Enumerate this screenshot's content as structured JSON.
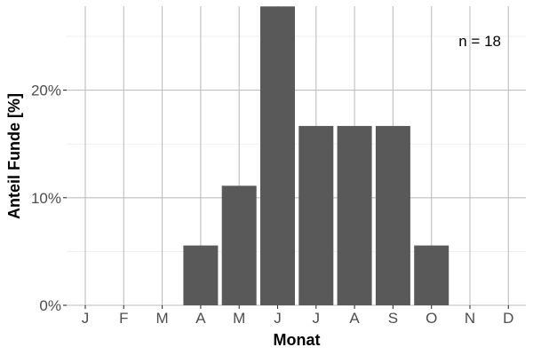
{
  "chart_data": {
    "type": "bar",
    "categories": [
      "J",
      "F",
      "M",
      "A",
      "M",
      "J",
      "J",
      "A",
      "S",
      "O",
      "N",
      "D"
    ],
    "values": [
      0,
      0,
      0,
      5.56,
      11.11,
      27.78,
      16.67,
      16.67,
      16.67,
      5.56,
      0,
      0
    ],
    "title": "",
    "xlabel": "Monat",
    "ylabel": "Anteil Funde [%]",
    "ylim": [
      0,
      27.8
    ],
    "yticks": [
      0,
      10,
      20
    ],
    "ytick_labels": [
      "0%",
      "10%",
      "20%"
    ],
    "annotation": "n = 18",
    "grid": true,
    "bar_color": "#595959",
    "grid_color": "#bebebe"
  }
}
